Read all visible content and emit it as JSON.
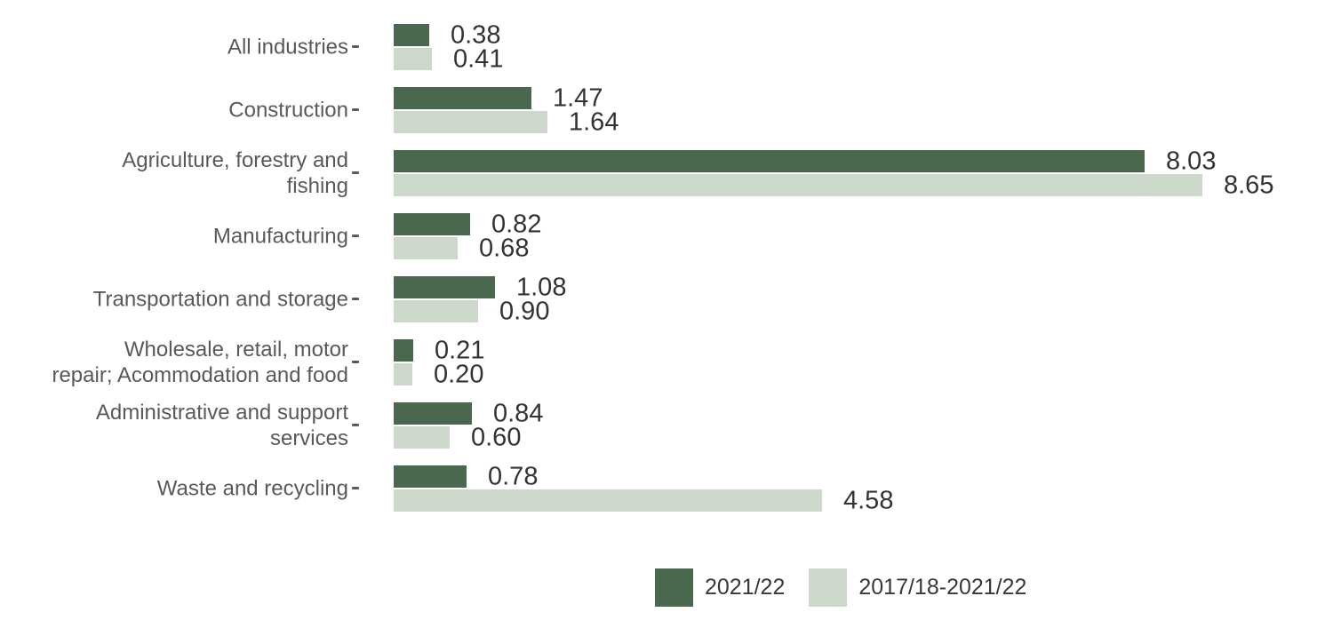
{
  "chart_data": {
    "type": "bar",
    "orientation": "horizontal",
    "title": "",
    "categories": [
      "All industries",
      "Construction",
      "Agriculture, forestry and\nfishing",
      "Manufacturing",
      "Transportation and storage",
      "Wholesale, retail, motor\nrepair; Acommodation and food",
      "Administrative and support\nservices",
      "Waste and recycling"
    ],
    "series": [
      {
        "name": "2021/22",
        "color": "#4a684e",
        "values": [
          0.38,
          1.47,
          8.03,
          0.82,
          1.08,
          0.21,
          0.84,
          0.78
        ]
      },
      {
        "name": "2017/18-2021/22",
        "color": "#ccd9ca",
        "values": [
          0.41,
          1.64,
          8.65,
          0.68,
          0.9,
          0.2,
          0.6,
          4.58
        ]
      }
    ],
    "value_label_decimals": 2,
    "xlim": [
      0,
      8.65
    ],
    "grid": false,
    "legend_position": "bottom-center",
    "axis_tick_color": "#595959",
    "category_label_color": "#595959",
    "value_label_color": "#333333",
    "background_color": "#ffffff"
  }
}
